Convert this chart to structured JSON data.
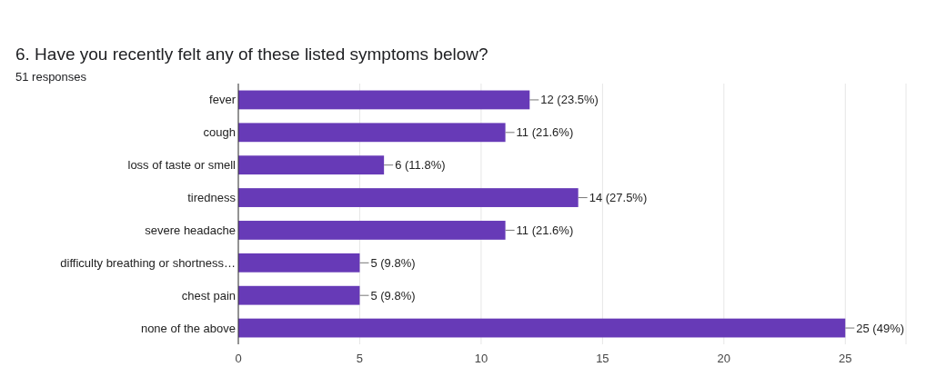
{
  "chart_data": {
    "type": "bar",
    "orientation": "horizontal",
    "title": "6. Have you recently felt any of these listed symptoms below?",
    "subtitle": "51 responses",
    "categories": [
      "fever",
      "cough",
      "loss of taste or smell",
      "tiredness",
      "severe headache",
      "difficulty breathing or shortness…",
      "chest pain",
      "none of the above"
    ],
    "values": [
      12,
      11,
      6,
      14,
      11,
      5,
      5,
      25
    ],
    "value_labels": [
      "12 (23.5%)",
      "11 (21.6%)",
      "6 (11.8%)",
      "14 (27.5%)",
      "11 (21.6%)",
      "5 (9.8%)",
      "5 (9.8%)",
      "25 (49%)"
    ],
    "color": "#673ab7",
    "xlim": [
      0,
      27.5
    ],
    "xticks": [
      0,
      5,
      10,
      15,
      20,
      25
    ],
    "grid": "x"
  }
}
